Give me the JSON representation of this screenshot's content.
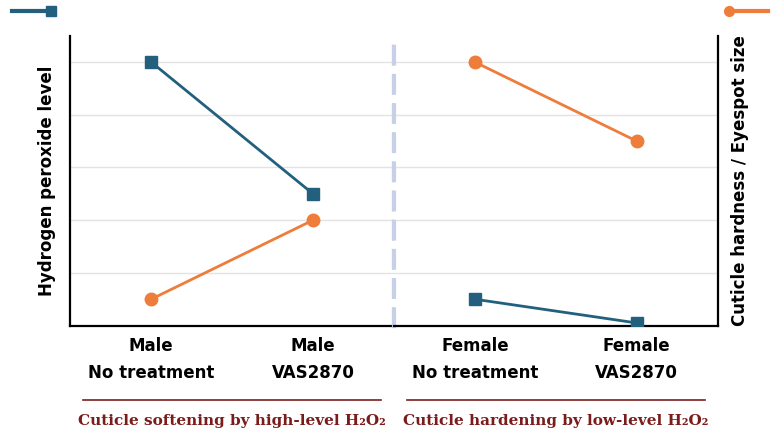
{
  "chart_data": [
    {
      "type": "line",
      "categories": [
        "Male\nNo treatment",
        "Male\nVAS2870"
      ],
      "ylabel": "Hydrogen peroxide level",
      "xlabel": "Cuticle softening by high-level H₂O₂",
      "ylim": [
        0,
        5.5
      ],
      "yticks": [
        0,
        1,
        2,
        3,
        4,
        5
      ],
      "y2lim": [
        0,
        5.5
      ],
      "y2ticks": [
        0,
        1,
        2,
        3,
        4,
        5
      ],
      "grid": true,
      "tick_labels": "x",
      "series": [
        {
          "color": "#23607e",
          "marker": "square",
          "values": [
            5.0,
            2.5
          ]
        },
        {
          "color": "#ee7d3b",
          "marker": "circle",
          "axis": "y2",
          "values": [
            0.5,
            2.0
          ]
        }
      ]
    },
    {
      "type": "line",
      "categories": [
        "Female\nNo treatment",
        "Female\nVAS2870"
      ],
      "y2label": "Cuticle hardness / Eyespot size",
      "xlabel": "Cuticle hardening by low-level H₂O₂",
      "ylim": [
        0,
        5.5
      ],
      "yticks": [
        0,
        1,
        2,
        3,
        4,
        5
      ],
      "y2lim": [
        0,
        5.5
      ],
      "y2ticks": [
        0,
        1,
        2,
        3,
        4,
        5
      ],
      "grid": true,
      "tick_labels": "x",
      "series": [
        {
          "color": "#23607e",
          "marker": "square",
          "values": [
            0.5,
            0.05
          ]
        },
        {
          "color": "#ee7d3b",
          "marker": "circle",
          "axis": "y2",
          "values": [
            5.0,
            3.5
          ]
        }
      ]
    }
  ]
}
